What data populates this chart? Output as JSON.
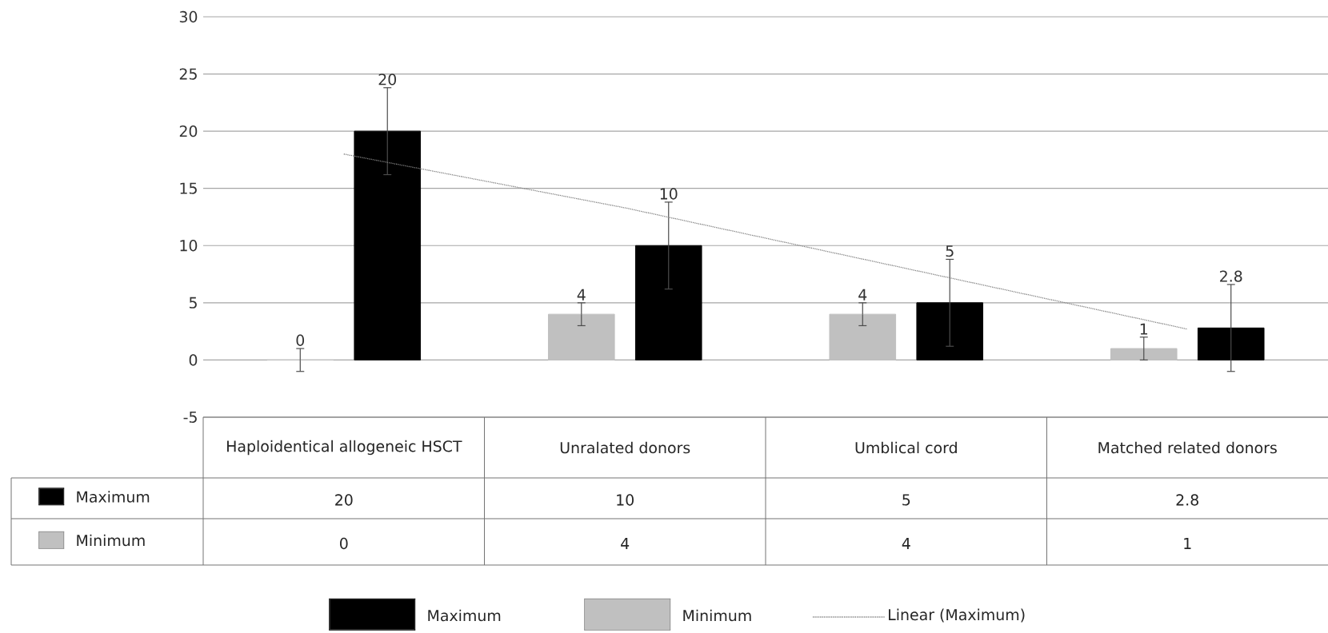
{
  "chart_data": {
    "type": "bar",
    "categories": [
      "Haploidentical allogeneic HSCT",
      "Unralated donors",
      "Umblical  cord",
      "Matched related donors"
    ],
    "series": [
      {
        "name": "Minimum",
        "color": "#c0c0c0",
        "values": [
          0,
          4,
          4,
          1
        ],
        "errors": [
          1,
          1,
          1,
          1
        ],
        "value_labels": [
          "0",
          "4",
          "4",
          "1"
        ]
      },
      {
        "name": "Maximum",
        "color": "#000000",
        "values": [
          20,
          10,
          5,
          2.8
        ],
        "errors": [
          3.8,
          3.8,
          3.8,
          3.8
        ],
        "value_labels": [
          "20",
          "10",
          "5",
          "2.8"
        ]
      },
      {
        "name": "Linear (Maximum)",
        "type": "line",
        "color": "#808080",
        "line_style": "dotted",
        "values": [
          18,
          13.3,
          8,
          2.7
        ]
      }
    ],
    "ylim": [
      -5,
      30
    ],
    "yticks": [
      -5,
      0,
      5,
      10,
      15,
      20,
      25,
      30
    ],
    "grid": "y",
    "legend": "bottom"
  }
}
